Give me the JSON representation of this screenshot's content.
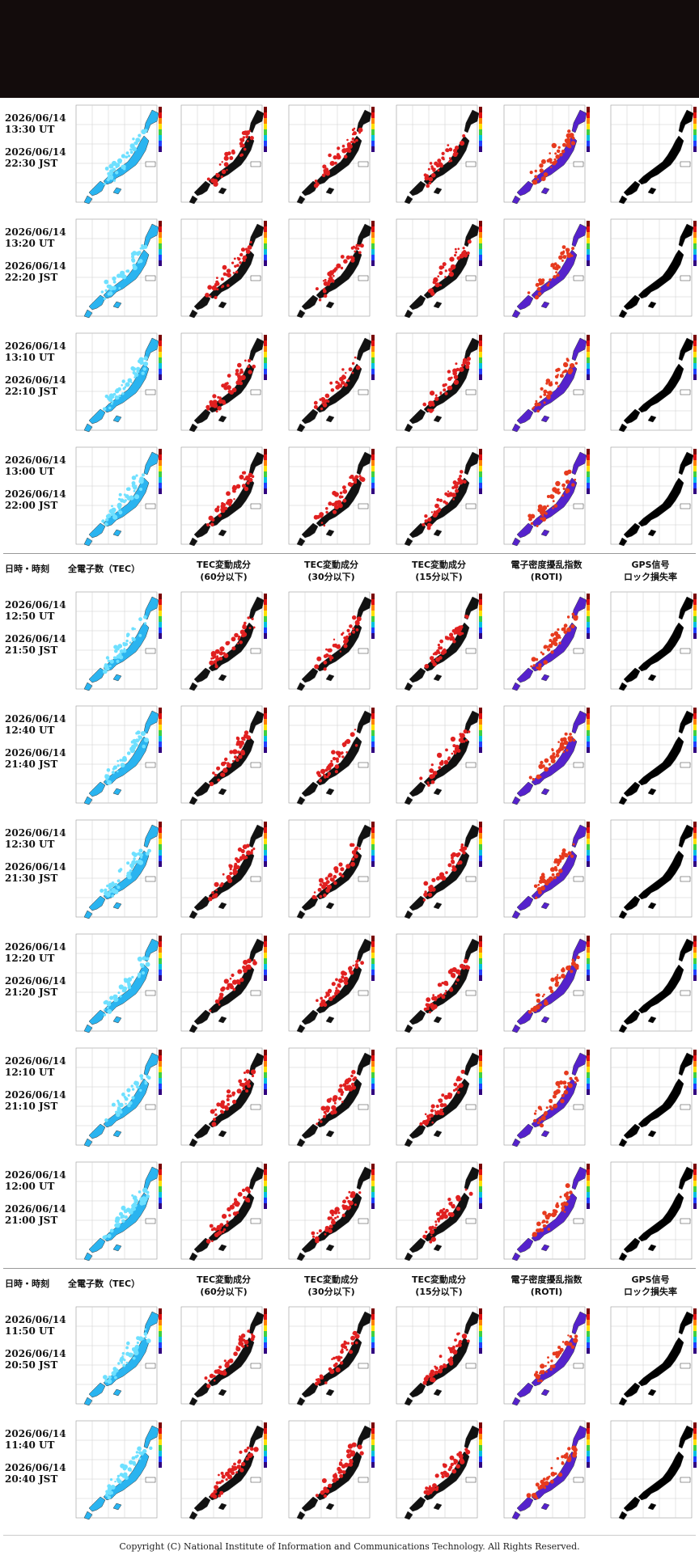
{
  "header_columns": [
    {
      "line1": "日時・時刻",
      "line2": ""
    },
    {
      "line1": "全電子数（TEC）",
      "line2": ""
    },
    {
      "line1": "TEC変動成分",
      "line2": "(60分以下)"
    },
    {
      "line1": "TEC変動成分",
      "line2": "(30分以下)"
    },
    {
      "line1": "TEC変動成分",
      "line2": "(15分以下)"
    },
    {
      "line1": "電子密度擾乱指数",
      "line2": "(ROTI)"
    },
    {
      "line1": "GPS信号",
      "line2": "ロック損失率"
    }
  ],
  "rows": [
    {
      "date_ut": "2026/06/14",
      "time_ut": "13:30 UT",
      "date_jst": "2026/06/14",
      "time_jst": "22:30 JST"
    },
    {
      "date_ut": "2026/06/14",
      "time_ut": "13:20 UT",
      "date_jst": "2026/06/14",
      "time_jst": "22:20 JST"
    },
    {
      "date_ut": "2026/06/14",
      "time_ut": "13:10 UT",
      "date_jst": "2026/06/14",
      "time_jst": "22:10 JST"
    },
    {
      "date_ut": "2026/06/14",
      "time_ut": "13:00 UT",
      "date_jst": "2026/06/14",
      "time_jst": "22:00 JST"
    },
    {
      "date_ut": "2026/06/14",
      "time_ut": "12:50 UT",
      "date_jst": "2026/06/14",
      "time_jst": "21:50 JST"
    },
    {
      "date_ut": "2026/06/14",
      "time_ut": "12:40 UT",
      "date_jst": "2026/06/14",
      "time_jst": "21:40 JST"
    },
    {
      "date_ut": "2026/06/14",
      "time_ut": "12:30 UT",
      "date_jst": "2026/06/14",
      "time_jst": "21:30 JST"
    },
    {
      "date_ut": "2026/06/14",
      "time_ut": "12:20 UT",
      "date_jst": "2026/06/14",
      "time_jst": "21:20 JST"
    },
    {
      "date_ut": "2026/06/14",
      "time_ut": "12:10 UT",
      "date_jst": "2026/06/14",
      "time_jst": "21:10 JST"
    },
    {
      "date_ut": "2026/06/14",
      "time_ut": "12:00 UT",
      "date_jst": "2026/06/14",
      "time_jst": "21:00 JST"
    },
    {
      "date_ut": "2026/06/14",
      "time_ut": "11:50 UT",
      "date_jst": "2026/06/14",
      "time_jst": "20:50 JST"
    },
    {
      "date_ut": "2026/06/14",
      "time_ut": "11:40 UT",
      "date_jst": "2026/06/14",
      "time_jst": "20:40 JST"
    }
  ],
  "map_types": [
    {
      "name": "tec-map",
      "land": "#2ab4f0",
      "accent": "#6ee0ff"
    },
    {
      "name": "tec-60min-map",
      "land": "#111111",
      "accent": "#e02020"
    },
    {
      "name": "tec-30min-map",
      "land": "#111111",
      "accent": "#e02020"
    },
    {
      "name": "tec-15min-map",
      "land": "#111111",
      "accent": "#e02020"
    },
    {
      "name": "roti-map",
      "land": "#5522cc",
      "accent": "#e63a1e"
    },
    {
      "name": "lol-map",
      "land": "#000000",
      "accent": "#000000"
    }
  ],
  "footer": {
    "copyright": "Copyright (C) National Institute of Information and Communications Technology. All Rights Reserved."
  }
}
